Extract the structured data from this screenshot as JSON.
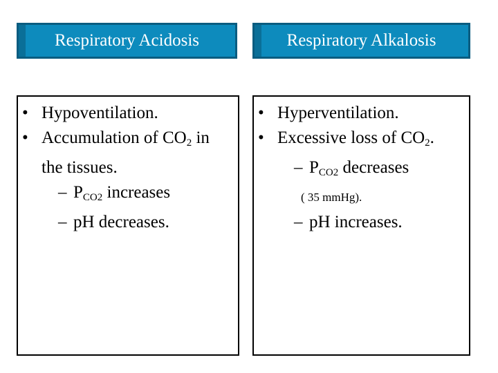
{
  "headers": {
    "left": "Respiratory Acidosis",
    "right": "Respiratory Alkalosis"
  },
  "left_box": {
    "item1": "Hypoventilation.",
    "item2_a": "Accumulation of CO",
    "item2_sub": "2",
    "item2_b": " in",
    "item2_cont": "the tissues.",
    "sub1_a": "P",
    "sub1_sub": "CO2",
    "sub1_b": " increases",
    "sub2": "pH decreases."
  },
  "right_box": {
    "item1": "Hyperventilation.",
    "item2_a": "Excessive loss of CO",
    "item2_sub": "2",
    "item2_b": ".",
    "sub1_a": "P",
    "sub1_sub": "CO2",
    "sub1_b": " decreases",
    "note": "(  35 mmHg).",
    "sub2": "pH increases."
  },
  "symbols": {
    "bullet": "•",
    "dash": "–"
  }
}
